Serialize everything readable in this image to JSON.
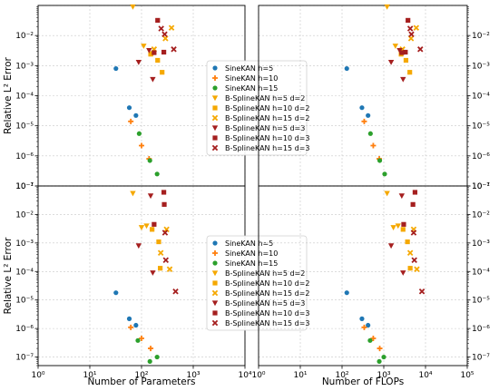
{
  "colors": {
    "sine_blue": "#1f77b4",
    "sine_orange": "#ff7f0e",
    "sine_green": "#2ca02c",
    "bspline_d2": "#f5a800",
    "bspline_d3": "#a51f1f",
    "grid": "#c8c8c8"
  },
  "chart_data": [
    {
      "type": "scatter",
      "panel": "top-left",
      "xscale": "log",
      "yscale": "log",
      "xlim": [
        1,
        10000
      ],
      "ylim": [
        1e-08,
        0.01
      ],
      "xlabel": "",
      "ylabel": "Relative L² Error",
      "x_ticks": [],
      "y_ticks": [
        "10⁻⁷",
        "10⁻⁶",
        "10⁻⁵",
        "10⁻⁴",
        "10⁻³",
        "10⁻²"
      ],
      "y_tick_side": "left",
      "grid": true,
      "legend": "center-right",
      "series": [
        {
          "name": "SineKAN h=5",
          "marker": "circle",
          "color": "sine_blue",
          "points": [
            [
              32,
              8e-05
            ],
            [
              58,
              4e-06
            ],
            [
              78,
              2.2e-06
            ]
          ]
        },
        {
          "name": "SineKAN h=10",
          "marker": "plus",
          "color": "sine_orange",
          "points": [
            [
              62,
              1.4e-06
            ],
            [
              100,
              2.2e-07
            ],
            [
              140,
              8e-08
            ]
          ]
        },
        {
          "name": "SineKAN h=15",
          "marker": "circle",
          "color": "sine_green",
          "points": [
            [
              90,
              5.5e-07
            ],
            [
              145,
              7e-08
            ],
            [
              200,
              2.5e-08
            ]
          ]
        },
        {
          "name": "B-SplineKAN h=5 d=2",
          "marker": "triangle-down",
          "color": "bspline_d2",
          "points": [
            [
              68,
              0.009
            ],
            [
              110,
              0.00045
            ],
            [
              165,
              0.00025
            ]
          ]
        },
        {
          "name": "B-SplineKAN h=10 d=2",
          "marker": "square",
          "color": "bspline_d2",
          "points": [
            [
              150,
              0.00024
            ],
            [
              205,
              0.00015
            ],
            [
              250,
              6e-05
            ]
          ]
        },
        {
          "name": "B-SplineKAN h=15 d=2",
          "marker": "x-dot",
          "color": "bspline_d2",
          "points": [
            [
              175,
              0.00035
            ],
            [
              290,
              0.0008
            ],
            [
              380,
              0.0018
            ]
          ]
        },
        {
          "name": "B-SplineKAN h=5 d=3",
          "marker": "triangle-down",
          "color": "bspline_d3",
          "points": [
            [
              88,
              0.00013
            ],
            [
              140,
              0.00032
            ],
            [
              165,
              3.5e-05
            ]
          ]
        },
        {
          "name": "B-SplineKAN h=10 d=3",
          "marker": "square",
          "color": "bspline_d3",
          "points": [
            [
              205,
              0.0032
            ],
            [
              270,
              0.00028
            ],
            [
              175,
              0.00027
            ]
          ]
        },
        {
          "name": "B-SplineKAN h=15 d=3",
          "marker": "x-dot",
          "color": "bspline_d3",
          "points": [
            [
              240,
              0.0017
            ],
            [
              280,
              0.0011
            ],
            [
              420,
              0.00035
            ]
          ]
        }
      ]
    },
    {
      "type": "scatter",
      "panel": "top-right",
      "xscale": "log",
      "yscale": "log",
      "xlim": [
        1,
        100000
      ],
      "ylim": [
        1e-08,
        0.01
      ],
      "xlabel": "",
      "ylabel": "",
      "x_ticks": [],
      "y_ticks": [
        "10⁻⁷",
        "10⁻⁶",
        "10⁻⁵",
        "10⁻⁴",
        "10⁻³",
        "10⁻²"
      ],
      "y_tick_side": "right",
      "grid": true,
      "series": [
        {
          "name": "SineKAN h=5",
          "marker": "circle",
          "color": "sine_blue",
          "points": [
            [
              130,
              8e-05
            ],
            [
              300,
              4e-06
            ],
            [
              420,
              2.2e-06
            ]
          ]
        },
        {
          "name": "SineKAN h=10",
          "marker": "plus",
          "color": "sine_orange",
          "points": [
            [
              340,
              1.4e-06
            ],
            [
              560,
              2.2e-07
            ],
            [
              780,
              8e-08
            ]
          ]
        },
        {
          "name": "SineKAN h=15",
          "marker": "circle",
          "color": "sine_green",
          "points": [
            [
              480,
              5.5e-07
            ],
            [
              800,
              7e-08
            ],
            [
              1050,
              2.5e-08
            ]
          ]
        },
        {
          "name": "B-SplineKAN h=5 d=2",
          "marker": "triangle-down",
          "color": "bspline_d2",
          "points": [
            [
              1200,
              0.009
            ],
            [
              1900,
              0.00045
            ],
            [
              2800,
              0.00025
            ]
          ]
        },
        {
          "name": "B-SplineKAN h=10 d=2",
          "marker": "square",
          "color": "bspline_d2",
          "points": [
            [
              2600,
              0.00024
            ],
            [
              3400,
              0.00015
            ],
            [
              4200,
              6e-05
            ]
          ]
        },
        {
          "name": "B-SplineKAN h=15 d=2",
          "marker": "x-dot",
          "color": "bspline_d2",
          "points": [
            [
              2800,
              0.00035
            ],
            [
              4500,
              0.0008
            ],
            [
              6000,
              0.0018
            ]
          ]
        },
        {
          "name": "B-SplineKAN h=5 d=3",
          "marker": "triangle-down",
          "color": "bspline_d3",
          "points": [
            [
              1500,
              0.00013
            ],
            [
              2400,
              0.00032
            ],
            [
              2900,
              3.5e-05
            ]
          ]
        },
        {
          "name": "B-SplineKAN h=10 d=3",
          "marker": "square",
          "color": "bspline_d3",
          "points": [
            [
              3800,
              0.0032
            ],
            [
              3300,
              0.00028
            ],
            [
              2700,
              0.00027
            ]
          ]
        },
        {
          "name": "B-SplineKAN h=15 d=3",
          "marker": "x-dot",
          "color": "bspline_d3",
          "points": [
            [
              4300,
              0.0017
            ],
            [
              4600,
              0.0011
            ],
            [
              7500,
              0.00035
            ]
          ]
        }
      ]
    },
    {
      "type": "scatter",
      "panel": "bottom-left",
      "xscale": "log",
      "yscale": "log",
      "xlim": [
        1,
        10000
      ],
      "ylim": [
        5e-08,
        0.1
      ],
      "xlabel": "Number of Parameters",
      "ylabel": "Relative L² Error",
      "x_ticks": [
        "10⁰",
        "10¹",
        "10²",
        "10³",
        "10⁴"
      ],
      "y_ticks": [
        "10⁻⁷",
        "10⁻⁶",
        "10⁻⁵",
        "10⁻⁴",
        "10⁻³",
        "10⁻²",
        "10⁻¹"
      ],
      "y_tick_side": "left",
      "grid": true,
      "legend": "center-right",
      "series": [
        {
          "name": "SineKAN h=5",
          "marker": "circle",
          "color": "sine_blue",
          "points": [
            [
              32,
              1.8e-05
            ],
            [
              58,
              2.2e-06
            ],
            [
              78,
              1.3e-06
            ]
          ]
        },
        {
          "name": "SineKAN h=10",
          "marker": "plus",
          "color": "sine_orange",
          "points": [
            [
              62,
              1.1e-06
            ],
            [
              100,
              4.5e-07
            ],
            [
              150,
              2e-07
            ]
          ]
        },
        {
          "name": "SineKAN h=15",
          "marker": "circle",
          "color": "sine_green",
          "points": [
            [
              85,
              3.8e-07
            ],
            [
              145,
              7e-08
            ],
            [
              200,
              1e-07
            ]
          ]
        },
        {
          "name": "B-SplineKAN h=5 d=2",
          "marker": "triangle-down",
          "color": "bspline_d2",
          "points": [
            [
              68,
              0.055
            ],
            [
              100,
              0.0035
            ],
            [
              125,
              0.004
            ]
          ]
        },
        {
          "name": "B-SplineKAN h=10 d=2",
          "marker": "square",
          "color": "bspline_d2",
          "points": [
            [
              160,
              0.003
            ],
            [
              215,
              0.0011
            ],
            [
              230,
              0.00013
            ]
          ]
        },
        {
          "name": "B-SplineKAN h=15 d=2",
          "marker": "x-dot",
          "color": "bspline_d2",
          "points": [
            [
              235,
              0.00045
            ],
            [
              305,
              0.003
            ],
            [
              350,
              0.00012
            ]
          ]
        },
        {
          "name": "B-SplineKAN h=5 d=3",
          "marker": "triangle-down",
          "color": "bspline_d3",
          "points": [
            [
              88,
              0.0008
            ],
            [
              150,
              0.045
            ],
            [
              165,
              9e-05
            ]
          ]
        },
        {
          "name": "B-SplineKAN h=10 d=3",
          "marker": "square",
          "color": "bspline_d3",
          "points": [
            [
              270,
              0.06
            ],
            [
              275,
              0.0225
            ],
            [
              175,
              0.0045
            ]
          ]
        },
        {
          "name": "B-SplineKAN h=15 d=3",
          "marker": "x-dot",
          "color": "bspline_d3",
          "points": [
            [
              285,
              0.0023
            ],
            [
              295,
              0.00025
            ],
            [
              455,
              2e-05
            ]
          ]
        }
      ]
    },
    {
      "type": "scatter",
      "panel": "bottom-right",
      "xscale": "log",
      "yscale": "log",
      "xlim": [
        1,
        100000
      ],
      "ylim": [
        5e-08,
        0.1
      ],
      "xlabel": "Number of FLOPs",
      "ylabel": "",
      "x_ticks": [
        "10⁰",
        "10¹",
        "10²",
        "10³",
        "10⁴",
        "10⁵"
      ],
      "y_ticks": [
        "10⁻⁷",
        "10⁻⁶",
        "10⁻⁵",
        "10⁻⁴",
        "10⁻³",
        "10⁻²",
        "10⁻¹"
      ],
      "y_tick_side": "right",
      "grid": true,
      "series": [
        {
          "name": "SineKAN h=5",
          "marker": "circle",
          "color": "sine_blue",
          "points": [
            [
              130,
              1.8e-05
            ],
            [
              300,
              2.2e-06
            ],
            [
              420,
              1.3e-06
            ]
          ]
        },
        {
          "name": "SineKAN h=10",
          "marker": "plus",
          "color": "sine_orange",
          "points": [
            [
              340,
              1.1e-06
            ],
            [
              560,
              4.5e-07
            ],
            [
              800,
              2e-07
            ]
          ]
        },
        {
          "name": "SineKAN h=15",
          "marker": "circle",
          "color": "sine_green",
          "points": [
            [
              470,
              3.8e-07
            ],
            [
              780,
              7e-08
            ],
            [
              1000,
              1e-07
            ]
          ]
        },
        {
          "name": "B-SplineKAN h=5 d=2",
          "marker": "triangle-down",
          "color": "bspline_d2",
          "points": [
            [
              1200,
              0.055
            ],
            [
              1700,
              0.0035
            ],
            [
              2200,
              0.004
            ]
          ]
        },
        {
          "name": "B-SplineKAN h=10 d=2",
          "marker": "square",
          "color": "bspline_d2",
          "points": [
            [
              2900,
              0.003
            ],
            [
              3700,
              0.0011
            ],
            [
              4300,
              0.00013
            ]
          ]
        },
        {
          "name": "B-SplineKAN h=15 d=2",
          "marker": "x-dot",
          "color": "bspline_d2",
          "points": [
            [
              4300,
              0.00045
            ],
            [
              5200,
              0.003
            ],
            [
              6200,
              0.00012
            ]
          ]
        },
        {
          "name": "B-SplineKAN h=5 d=3",
          "marker": "triangle-down",
          "color": "bspline_d3",
          "points": [
            [
              1500,
              0.0008
            ],
            [
              2700,
              0.045
            ],
            [
              2900,
              9e-05
            ]
          ]
        },
        {
          "name": "B-SplineKAN h=10 d=3",
          "marker": "square",
          "color": "bspline_d3",
          "points": [
            [
              5600,
              0.06
            ],
            [
              5000,
              0.0225
            ],
            [
              3000,
              0.0045
            ]
          ]
        },
        {
          "name": "B-SplineKAN h=15 d=3",
          "marker": "x-dot",
          "color": "bspline_d3",
          "points": [
            [
              5200,
              0.0023
            ],
            [
              5400,
              0.00025
            ],
            [
              8200,
              2e-05
            ]
          ]
        }
      ]
    }
  ]
}
